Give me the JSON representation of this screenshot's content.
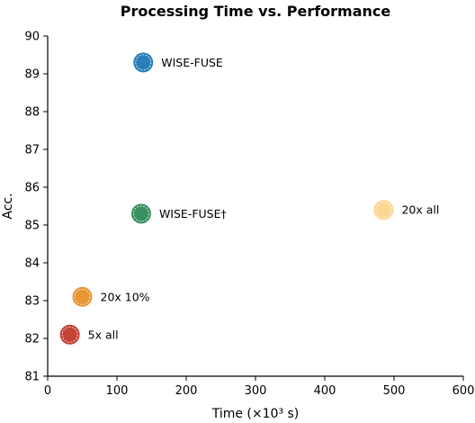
{
  "chart_data": {
    "type": "scatter",
    "title": "Processing Time vs. Performance",
    "xlabel": "Time (×10³ s)",
    "ylabel": "Acc.",
    "xlim": [
      0,
      600
    ],
    "ylim": [
      81,
      90
    ],
    "xticks": [
      "0",
      "100",
      "200",
      "300",
      "400",
      "500",
      "600"
    ],
    "yticks": [
      "81",
      "82",
      "83",
      "84",
      "85",
      "86",
      "87",
      "88",
      "89",
      "90"
    ],
    "grid": false,
    "points": [
      {
        "label": "WISE-FUSE",
        "x": 138,
        "y": 89.3,
        "color": "#1f77b4"
      },
      {
        "label": "WISE-FUSE†",
        "x": 135,
        "y": 85.3,
        "color": "#2e8b57"
      },
      {
        "label": "20x all",
        "x": 485,
        "y": 85.4,
        "color": "#fdd58c"
      },
      {
        "label": "20x 10%",
        "x": 50,
        "y": 83.1,
        "color": "#e8902a"
      },
      {
        "label": "5x all",
        "x": 32,
        "y": 82.1,
        "color": "#c0392b"
      }
    ]
  }
}
